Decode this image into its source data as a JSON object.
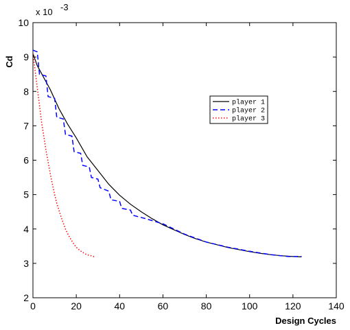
{
  "chart_data": {
    "type": "line",
    "title": "",
    "xlabel": "Design Cycles",
    "ylabel": "Cd",
    "y_multiplier_label": "x 10",
    "y_multiplier_exponent": "-3",
    "xlim": [
      0,
      140
    ],
    "ylim": [
      2,
      10
    ],
    "x_ticks": [
      "0",
      "20",
      "40",
      "60",
      "80",
      "100",
      "120",
      "140"
    ],
    "y_ticks": [
      "2",
      "3",
      "4",
      "5",
      "6",
      "7",
      "8",
      "9",
      "10"
    ],
    "grid": false,
    "legend_position": "right",
    "series": [
      {
        "name": "player 1",
        "color": "#000000",
        "style": "solid",
        "points": [
          [
            0,
            9.1
          ],
          [
            2,
            8.75
          ],
          [
            5,
            8.4
          ],
          [
            8,
            8.05
          ],
          [
            12,
            7.5
          ],
          [
            16,
            7.05
          ],
          [
            20,
            6.65
          ],
          [
            25,
            6.1
          ],
          [
            30,
            5.7
          ],
          [
            35,
            5.3
          ],
          [
            40,
            4.98
          ],
          [
            45,
            4.72
          ],
          [
            50,
            4.5
          ],
          [
            55,
            4.3
          ],
          [
            60,
            4.12
          ],
          [
            65,
            3.98
          ],
          [
            70,
            3.84
          ],
          [
            75,
            3.72
          ],
          [
            80,
            3.62
          ],
          [
            85,
            3.54
          ],
          [
            90,
            3.46
          ],
          [
            95,
            3.4
          ],
          [
            100,
            3.34
          ],
          [
            105,
            3.29
          ],
          [
            110,
            3.25
          ],
          [
            115,
            3.22
          ],
          [
            120,
            3.2
          ],
          [
            124,
            3.19
          ]
        ]
      },
      {
        "name": "player 2",
        "color": "#0000ff",
        "style": "dashed",
        "points": [
          [
            0,
            9.2
          ],
          [
            2,
            9.15
          ],
          [
            3,
            8.5
          ],
          [
            6,
            8.45
          ],
          [
            7,
            7.85
          ],
          [
            10,
            7.8
          ],
          [
            11,
            7.25
          ],
          [
            14,
            7.2
          ],
          [
            15,
            6.75
          ],
          [
            18,
            6.7
          ],
          [
            19,
            6.25
          ],
          [
            22,
            6.2
          ],
          [
            23,
            5.85
          ],
          [
            26,
            5.8
          ],
          [
            27,
            5.5
          ],
          [
            30,
            5.45
          ],
          [
            31,
            5.2
          ],
          [
            35,
            5.1
          ],
          [
            36,
            4.85
          ],
          [
            40,
            4.8
          ],
          [
            41,
            4.6
          ],
          [
            45,
            4.55
          ],
          [
            46,
            4.4
          ],
          [
            52,
            4.3
          ],
          [
            60,
            4.15
          ],
          [
            70,
            3.85
          ],
          [
            80,
            3.62
          ],
          [
            90,
            3.47
          ],
          [
            100,
            3.35
          ],
          [
            110,
            3.25
          ],
          [
            118,
            3.2
          ],
          [
            124,
            3.2
          ]
        ]
      },
      {
        "name": "player 3",
        "color": "#ff0000",
        "style": "dotted",
        "points": [
          [
            0,
            9.1
          ],
          [
            1,
            8.6
          ],
          [
            2,
            8.1
          ],
          [
            3,
            7.6
          ],
          [
            4,
            7.1
          ],
          [
            5,
            6.7
          ],
          [
            6,
            6.3
          ],
          [
            7,
            5.95
          ],
          [
            8,
            5.6
          ],
          [
            9,
            5.3
          ],
          [
            10,
            5.0
          ],
          [
            11,
            4.75
          ],
          [
            12,
            4.55
          ],
          [
            13,
            4.35
          ],
          [
            14,
            4.17
          ],
          [
            15,
            4.0
          ],
          [
            16,
            3.87
          ],
          [
            17,
            3.75
          ],
          [
            18,
            3.65
          ],
          [
            19,
            3.55
          ],
          [
            20,
            3.47
          ],
          [
            21,
            3.41
          ],
          [
            22,
            3.36
          ],
          [
            23,
            3.32
          ],
          [
            24,
            3.28
          ],
          [
            25,
            3.25
          ],
          [
            26,
            3.23
          ],
          [
            27,
            3.22
          ],
          [
            28,
            3.2
          ],
          [
            29,
            3.19
          ]
        ]
      }
    ]
  }
}
